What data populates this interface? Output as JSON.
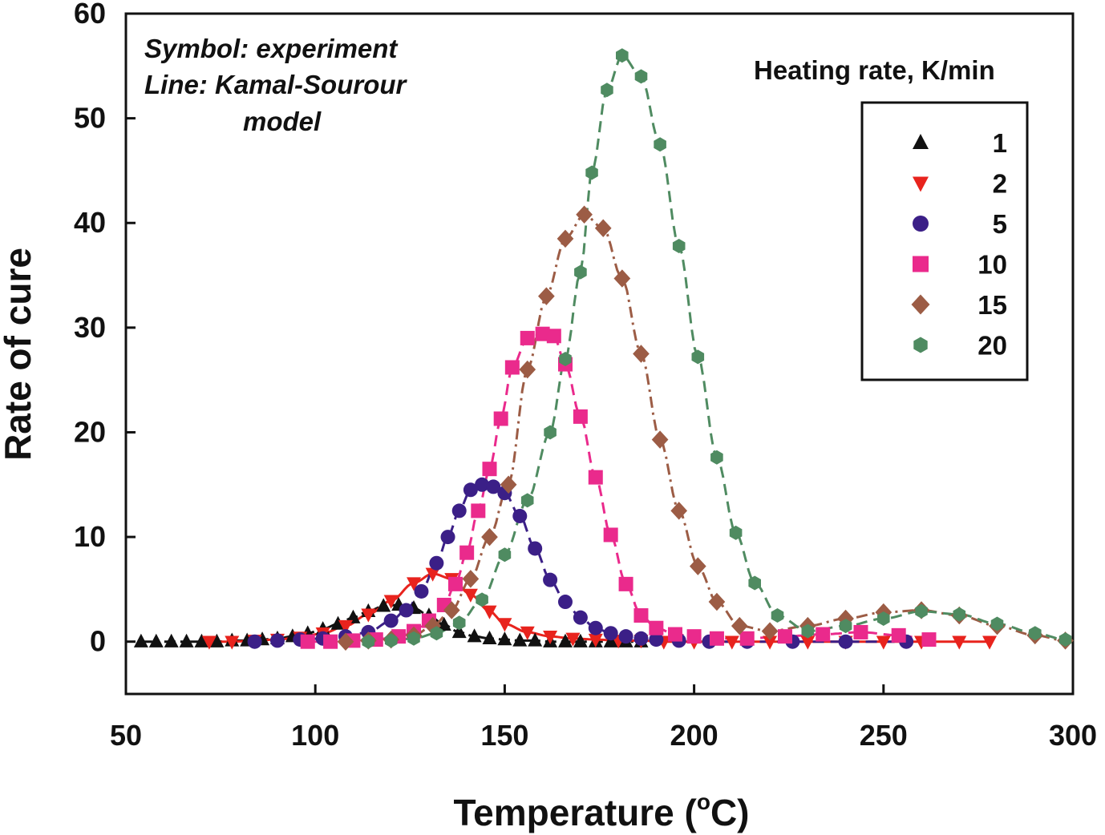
{
  "chart_data": {
    "type": "scatter",
    "xlabel": "Temperature (",
    "xlabel_sup": "o",
    "xlabel_tail": "C)",
    "ylabel": "Rate of cure",
    "xlim": [
      50,
      300
    ],
    "ylim": [
      -5,
      60
    ],
    "x_ticks": [
      "50",
      "100",
      "150",
      "200",
      "250",
      "300"
    ],
    "y_ticks": [
      "0",
      "10",
      "20",
      "30",
      "40",
      "50",
      "60"
    ],
    "notes": [
      "Symbol: experiment",
      "Line: Kamal-Sourour",
      "model"
    ],
    "legend_title": "Heating rate, K/min",
    "legend_position": "top-right",
    "grid": false,
    "series": [
      {
        "name": "1",
        "marker": "triangle-up",
        "color": "#111111",
        "line_style": "dash-dot",
        "peak_x": 121,
        "peak_y": 3.5,
        "width_left": 11,
        "width_right": 7,
        "x": [
          54,
          58,
          62,
          66,
          70,
          74,
          78,
          82,
          86,
          90,
          94,
          98,
          102,
          106,
          110,
          114,
          118,
          122,
          126,
          130,
          134,
          138,
          142,
          146,
          150,
          154,
          158,
          162,
          166,
          170,
          174,
          178,
          182,
          186
        ],
        "y": [
          0,
          0,
          0,
          0,
          0,
          0,
          0.1,
          0.1,
          0.2,
          0.3,
          0.5,
          0.8,
          1.2,
          1.7,
          2.3,
          2.9,
          3.4,
          3.5,
          3.2,
          2.5,
          1.6,
          0.9,
          0.5,
          0.3,
          0.2,
          0.1,
          0.1,
          0,
          0,
          0,
          0,
          0,
          0,
          0
        ]
      },
      {
        "name": "2",
        "marker": "triangle-down",
        "color": "#e8231d",
        "line_style": "solid",
        "peak_x": 132,
        "peak_y": 6.5,
        "width_left": 11,
        "width_right": 8,
        "x": [
          72,
          78,
          84,
          90,
          96,
          102,
          108,
          114,
          120,
          126,
          131,
          136,
          141,
          146,
          150,
          156,
          162,
          168,
          174,
          180,
          186,
          192,
          200,
          210,
          220,
          230,
          240,
          250,
          260,
          270,
          278
        ],
        "y": [
          0,
          0,
          0.1,
          0.2,
          0.4,
          0.8,
          1.5,
          2.6,
          3.9,
          5.6,
          6.5,
          6.0,
          4.5,
          2.9,
          1.7,
          0.9,
          0.5,
          0.3,
          0.2,
          0.1,
          0.1,
          0,
          0,
          0,
          0,
          0,
          0,
          0,
          0,
          0,
          0
        ]
      },
      {
        "name": "5",
        "marker": "circle",
        "color": "#3b1f87",
        "line_style": "dash",
        "peak_x": 147,
        "peak_y": 15,
        "width_left": 11,
        "width_right": 10,
        "x": [
          84,
          90,
          96,
          102,
          108,
          114,
          120,
          124,
          128,
          132,
          135,
          138,
          141,
          144,
          147,
          150,
          154,
          158,
          162,
          166,
          170,
          174,
          178,
          182,
          186,
          190,
          196,
          204,
          214,
          226,
          240,
          256
        ],
        "y": [
          0,
          0.1,
          0.2,
          0.3,
          0.5,
          0.9,
          2.0,
          3.0,
          4.8,
          7.5,
          10.0,
          12.5,
          14.5,
          15.0,
          14.8,
          14.2,
          12.0,
          8.9,
          5.9,
          3.8,
          2.3,
          1.3,
          0.8,
          0.5,
          0.3,
          0.2,
          0.1,
          0,
          0,
          0,
          0,
          0
        ]
      },
      {
        "name": "10",
        "marker": "square",
        "color": "#ea2a8c",
        "line_style": "dash",
        "peak_x": 162,
        "peak_y": 29.5,
        "width_left": 10,
        "width_right": 11,
        "x": [
          98,
          104,
          110,
          116,
          122,
          126,
          130,
          134,
          137,
          140,
          143,
          146,
          149,
          152,
          156,
          160,
          163,
          166,
          170,
          174,
          178,
          182,
          186,
          190,
          195,
          200,
          206,
          214,
          224,
          234,
          244,
          254,
          262
        ],
        "y": [
          0,
          0,
          0.1,
          0.2,
          0.5,
          1.0,
          2.0,
          3.5,
          5.5,
          8.5,
          12.5,
          16.5,
          21.3,
          26.2,
          29.0,
          29.4,
          29.2,
          26.5,
          21.5,
          15.7,
          10.2,
          5.5,
          2.5,
          1.3,
          0.7,
          0.5,
          0.3,
          0.3,
          0.5,
          0.7,
          0.9,
          0.6,
          0.2
        ]
      },
      {
        "name": "15",
        "marker": "diamond",
        "color": "#9c5c45",
        "line_style": "dash-dot",
        "peak_x": 168,
        "peak_y": 44,
        "width_left": 11,
        "width_right": 12,
        "x": [
          108,
          114,
          120,
          126,
          131,
          136,
          141,
          146,
          151,
          156,
          161,
          166,
          171,
          176,
          181,
          186,
          191,
          196,
          201,
          206,
          212,
          220,
          230,
          240,
          250,
          260,
          270,
          280,
          290,
          298
        ],
        "y": [
          0,
          0.1,
          0.2,
          0.6,
          1.5,
          3.0,
          6.0,
          10.0,
          15.0,
          26.0,
          33.0,
          38.5,
          40.8,
          39.5,
          34.7,
          27.5,
          19.3,
          12.5,
          7.2,
          3.8,
          1.5,
          1.0,
          1.5,
          2.2,
          2.8,
          3.0,
          2.5,
          1.5,
          0.6,
          0.1
        ]
      },
      {
        "name": "20",
        "marker": "hexagon",
        "color": "#4f8b61",
        "line_style": "dash",
        "peak_x": 174,
        "peak_y": 57,
        "width_left": 11,
        "width_right": 12,
        "x": [
          114,
          120,
          126,
          132,
          138,
          144,
          150,
          156,
          162,
          166,
          170,
          173,
          177,
          181,
          186,
          191,
          196,
          201,
          206,
          211,
          216,
          222,
          230,
          240,
          250,
          260,
          270,
          280,
          290,
          298
        ],
        "y": [
          0,
          0.1,
          0.3,
          0.8,
          1.8,
          4.0,
          8.3,
          13.5,
          20.0,
          27.0,
          35.3,
          44.8,
          52.7,
          56.0,
          54.0,
          47.5,
          37.8,
          27.2,
          17.6,
          10.4,
          5.6,
          2.5,
          1.0,
          1.5,
          2.2,
          2.9,
          2.6,
          1.7,
          0.8,
          0.2
        ]
      }
    ]
  }
}
